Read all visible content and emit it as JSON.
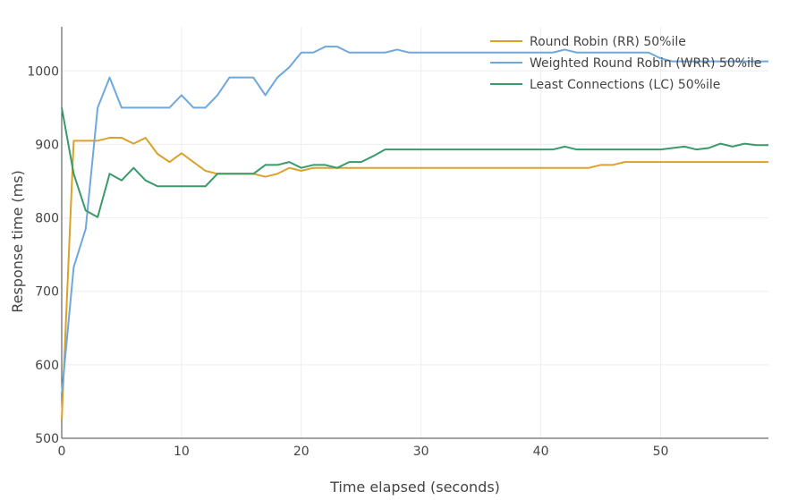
{
  "chart_data": {
    "type": "line",
    "title": "",
    "xlabel": "Time elapsed (seconds)",
    "ylabel": "Response time (ms)",
    "xlim": [
      0,
      59
    ],
    "ylim": [
      500,
      1060
    ],
    "xticks": [
      0,
      10,
      20,
      30,
      40,
      50
    ],
    "yticks": [
      500,
      600,
      700,
      800,
      900,
      1000
    ],
    "grid": true,
    "legend_position": "top-right",
    "x": [
      0,
      1,
      2,
      3,
      4,
      5,
      6,
      7,
      8,
      9,
      10,
      11,
      12,
      13,
      14,
      15,
      16,
      17,
      18,
      19,
      20,
      21,
      22,
      23,
      24,
      25,
      26,
      27,
      28,
      29,
      30,
      31,
      32,
      33,
      34,
      35,
      36,
      37,
      38,
      39,
      40,
      41,
      42,
      43,
      44,
      45,
      46,
      47,
      48,
      49,
      50,
      51,
      52,
      53,
      54,
      55,
      56,
      57,
      58,
      59
    ],
    "series": [
      {
        "name": "Round Robin (RR) 50%ile",
        "color": "#d9a32a",
        "values": [
          525,
          905,
          905,
          905,
          909,
          909,
          901,
          909,
          887,
          876,
          888,
          876,
          864,
          860,
          860,
          860,
          860,
          856,
          860,
          868,
          864,
          868,
          868,
          868,
          868,
          868,
          868,
          868,
          868,
          868,
          868,
          868,
          868,
          868,
          868,
          868,
          868,
          868,
          868,
          868,
          868,
          868,
          868,
          868,
          868,
          872,
          872,
          876,
          876,
          876,
          876,
          876,
          876,
          876,
          876,
          876,
          876,
          876,
          876,
          876
        ]
      },
      {
        "name": "Weighted Round Robin (WRR) 50%ile",
        "color": "#6fa8dc",
        "values": [
          560,
          733,
          785,
          950,
          991,
          950,
          950,
          950,
          950,
          950,
          967,
          950,
          950,
          967,
          991,
          991,
          991,
          967,
          991,
          1005,
          1025,
          1025,
          1033,
          1033,
          1025,
          1025,
          1025,
          1025,
          1029,
          1025,
          1025,
          1025,
          1025,
          1025,
          1025,
          1025,
          1025,
          1025,
          1025,
          1025,
          1025,
          1025,
          1029,
          1025,
          1025,
          1025,
          1025,
          1025,
          1025,
          1025,
          1017,
          1013,
          1013,
          1013,
          1013,
          1013,
          1013,
          1013,
          1013,
          1013
        ]
      },
      {
        "name": "Least Connections (LC) 50%ile",
        "color": "#3a9a6a",
        "values": [
          950,
          860,
          810,
          801,
          860,
          851,
          868,
          851,
          843,
          843,
          843,
          843,
          843,
          860,
          860,
          860,
          860,
          872,
          872,
          876,
          868,
          872,
          872,
          868,
          876,
          876,
          884,
          893,
          893,
          893,
          893,
          893,
          893,
          893,
          893,
          893,
          893,
          893,
          893,
          893,
          893,
          893,
          897,
          893,
          893,
          893,
          893,
          893,
          893,
          893,
          893,
          895,
          897,
          893,
          895,
          901,
          897,
          901,
          899,
          899
        ]
      }
    ]
  }
}
